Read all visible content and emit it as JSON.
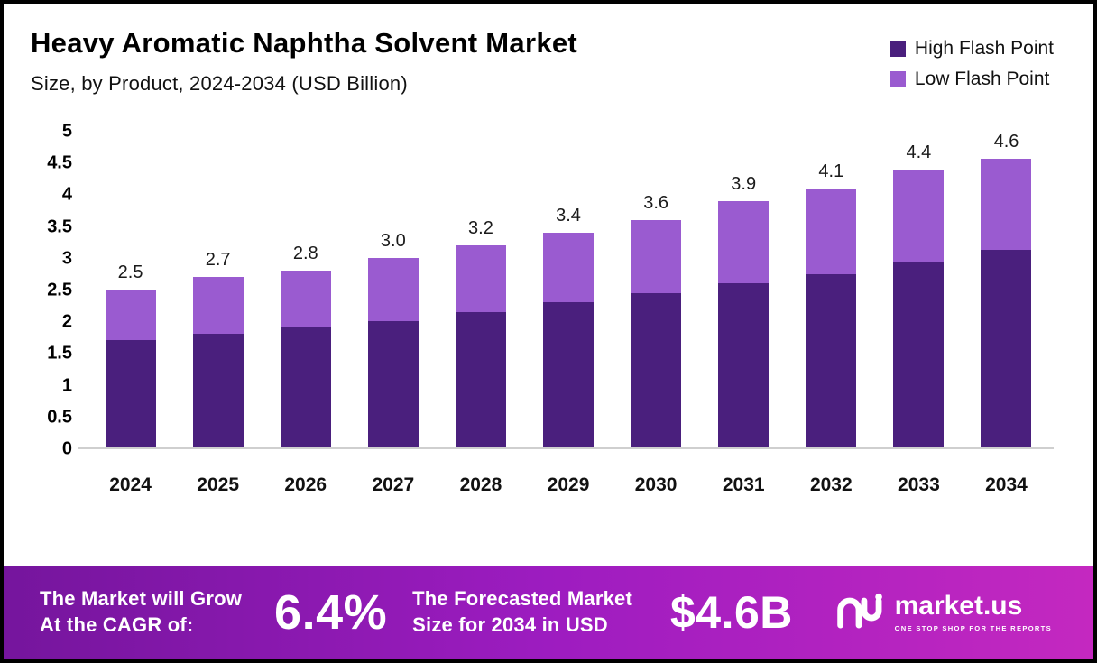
{
  "header": {
    "title": "Heavy Aromatic Naphtha Solvent Market",
    "subtitle": "Size, by Product, 2024-2034 (USD Billion)"
  },
  "legend": [
    {
      "label": "High Flash Point",
      "color": "#4a1f7d"
    },
    {
      "label": "Low Flash Point",
      "color": "#9a5bd0"
    }
  ],
  "chart_data": {
    "type": "bar",
    "stacked": true,
    "title": "Heavy Aromatic Naphtha Solvent Market Size, by Product, 2024-2034 (USD Billion)",
    "categories": [
      "2024",
      "2025",
      "2026",
      "2027",
      "2028",
      "2029",
      "2030",
      "2031",
      "2032",
      "2033",
      "2034"
    ],
    "series": [
      {
        "name": "High Flash Point",
        "color": "#4a1f7d",
        "values": [
          1.7,
          1.8,
          1.9,
          2.0,
          2.15,
          2.3,
          2.45,
          2.6,
          2.75,
          2.95,
          3.15
        ]
      },
      {
        "name": "Low Flash Point",
        "color": "#9a5bd0",
        "values": [
          0.8,
          0.9,
          0.9,
          1.0,
          1.05,
          1.1,
          1.15,
          1.3,
          1.35,
          1.45,
          1.45
        ]
      }
    ],
    "totals": [
      2.5,
      2.7,
      2.8,
      3.0,
      3.2,
      3.4,
      3.6,
      3.9,
      4.1,
      4.4,
      4.6
    ],
    "total_labels": [
      "2.5",
      "2.7",
      "2.8",
      "3.0",
      "3.2",
      "3.4",
      "3.6",
      "3.9",
      "4.1",
      "4.4",
      "4.6"
    ],
    "xlabel": "",
    "ylabel": "",
    "ylim": [
      0,
      5
    ],
    "yticks": [
      "5",
      "4.5",
      "4",
      "3.5",
      "3",
      "2.5",
      "2",
      "1.5",
      "1",
      "0.5",
      "0"
    ],
    "grid": false,
    "legend_position": "top-right"
  },
  "banner": {
    "left_line1": "The Market will Grow",
    "left_line2": "At the CAGR of:",
    "cagr": "6.4%",
    "mid_line1": "The Forecasted Market",
    "mid_line2": "Size for 2034 in USD",
    "forecast": "$4.6B",
    "logo_text": "market.us",
    "logo_tagline": "ONE STOP SHOP FOR THE REPORTS"
  }
}
